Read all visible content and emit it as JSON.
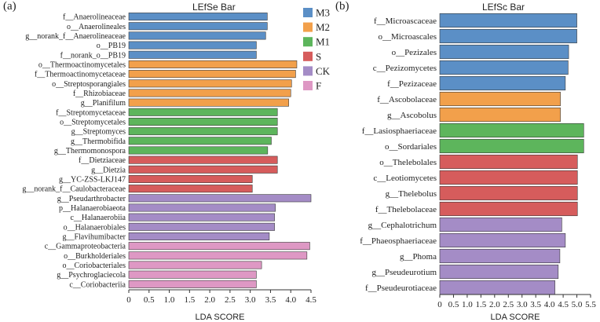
{
  "panels": [
    {
      "label": "(a)"
    },
    {
      "label": "(b)"
    }
  ],
  "legend": [
    {
      "name": "M3",
      "color": "#5b8fc6"
    },
    {
      "name": "M2",
      "color": "#f2a04b"
    },
    {
      "name": "M1",
      "color": "#5db55c"
    },
    {
      "name": "S",
      "color": "#d65c5c"
    },
    {
      "name": "CK",
      "color": "#a48cc6"
    },
    {
      "name": "F",
      "color": "#de98c4"
    }
  ],
  "chart_data": [
    {
      "type": "bar",
      "orientation": "horizontal",
      "title": "LEfSe Bar",
      "xlabel": "LDA SCORE",
      "xlim": [
        0,
        4.5
      ],
      "xticks": [
        "0",
        "0.5",
        "1.0",
        "1.5",
        "2.0",
        "2.5",
        "3.0",
        "3.5",
        "4.0",
        "4.5"
      ],
      "bars": [
        {
          "label": "f__Anaerolineaceae",
          "value": 3.42,
          "group": "M3"
        },
        {
          "label": "o__Anaerolineales",
          "value": 3.42,
          "group": "M3"
        },
        {
          "label": "g__norank_f__Anaerolineaceae",
          "value": 3.38,
          "group": "M3"
        },
        {
          "label": "o__PB19",
          "value": 3.15,
          "group": "M3"
        },
        {
          "label": "f__norank_o__PB19",
          "value": 3.15,
          "group": "M3"
        },
        {
          "label": "o__Thermoactinomycetales",
          "value": 4.15,
          "group": "M2"
        },
        {
          "label": "f__Thermoactinomycetaceae",
          "value": 4.12,
          "group": "M2"
        },
        {
          "label": "o__Streptosporangiales",
          "value": 4.02,
          "group": "M2"
        },
        {
          "label": "f__Rhizobiaceae",
          "value": 4.0,
          "group": "M2"
        },
        {
          "label": "g__Planifilum",
          "value": 3.95,
          "group": "M2"
        },
        {
          "label": "f__Streptomycetaceae",
          "value": 3.67,
          "group": "M1"
        },
        {
          "label": "o__Streptomycetales",
          "value": 3.67,
          "group": "M1"
        },
        {
          "label": "g__Streptomyces",
          "value": 3.67,
          "group": "M1"
        },
        {
          "label": "g__Thermobifida",
          "value": 3.52,
          "group": "M1"
        },
        {
          "label": "g__Thermomonospora",
          "value": 3.43,
          "group": "M1"
        },
        {
          "label": "f__Dietziaceae",
          "value": 3.67,
          "group": "S"
        },
        {
          "label": "g__Dietzia",
          "value": 3.67,
          "group": "S"
        },
        {
          "label": "g__YC-ZSS-LKJ147",
          "value": 3.05,
          "group": "S"
        },
        {
          "label": "g__norank_f__Caulobacteraceae",
          "value": 3.05,
          "group": "S"
        },
        {
          "label": "g__Pseudarthrobacter",
          "value": 4.5,
          "group": "CK"
        },
        {
          "label": "p__Halanaerobiaeota",
          "value": 3.62,
          "group": "CK"
        },
        {
          "label": "c__Halanaerobiia",
          "value": 3.6,
          "group": "CK"
        },
        {
          "label": "o__Halanaerobiales",
          "value": 3.6,
          "group": "CK"
        },
        {
          "label": "g__Flavihumibacter",
          "value": 3.47,
          "group": "CK"
        },
        {
          "label": "c__Gammaproteobacteria",
          "value": 4.47,
          "group": "F"
        },
        {
          "label": "o__Burkholderiales",
          "value": 4.4,
          "group": "F"
        },
        {
          "label": "o__Coriobacteriales",
          "value": 3.28,
          "group": "F"
        },
        {
          "label": "g__Psychroglaciecola",
          "value": 3.15,
          "group": "F"
        },
        {
          "label": "c__Coriobacteriia",
          "value": 3.15,
          "group": "F"
        }
      ]
    },
    {
      "type": "bar",
      "orientation": "horizontal",
      "title": "LEfSc Bar",
      "xlabel": "LDA SCORE",
      "xlim": [
        0,
        5.5
      ],
      "xticks": [
        "0",
        "0.5",
        "1.0",
        "1.5",
        "2.0",
        "2.5",
        "3.0",
        "3.5",
        "4.0",
        "4.5",
        "5.0",
        "5.5"
      ],
      "bars": [
        {
          "label": "f__Microascaceae",
          "value": 5.0,
          "group": "M3"
        },
        {
          "label": "o__Microascales",
          "value": 5.0,
          "group": "M3"
        },
        {
          "label": "o__Pezizales",
          "value": 4.7,
          "group": "M3"
        },
        {
          "label": "c__Pezizomycetes",
          "value": 4.68,
          "group": "M3"
        },
        {
          "label": "f__Pezizaceae",
          "value": 4.58,
          "group": "M3"
        },
        {
          "label": "f__Ascobolaceae",
          "value": 4.4,
          "group": "M2"
        },
        {
          "label": "g__Ascobolus",
          "value": 4.4,
          "group": "M2"
        },
        {
          "label": "f__Lasiosphaeriaceae",
          "value": 5.25,
          "group": "M1"
        },
        {
          "label": "o__Sordariales",
          "value": 5.25,
          "group": "M1"
        },
        {
          "label": "o__Thelebolales",
          "value": 5.02,
          "group": "S"
        },
        {
          "label": "c__Leotiomycetes",
          "value": 5.02,
          "group": "S"
        },
        {
          "label": "g__Thelebolus",
          "value": 5.02,
          "group": "S"
        },
        {
          "label": "f__Thelebolaceae",
          "value": 5.02,
          "group": "S"
        },
        {
          "label": "g__Cephalotrichum",
          "value": 4.45,
          "group": "CK"
        },
        {
          "label": "f__Phaeosphaeriaceae",
          "value": 4.58,
          "group": "CK"
        },
        {
          "label": "g__Phoma",
          "value": 4.38,
          "group": "CK"
        },
        {
          "label": "g__Pseudeurotium",
          "value": 4.32,
          "group": "CK"
        },
        {
          "label": "f__Pseudeurotiaceae",
          "value": 4.2,
          "group": "CK"
        }
      ]
    }
  ]
}
